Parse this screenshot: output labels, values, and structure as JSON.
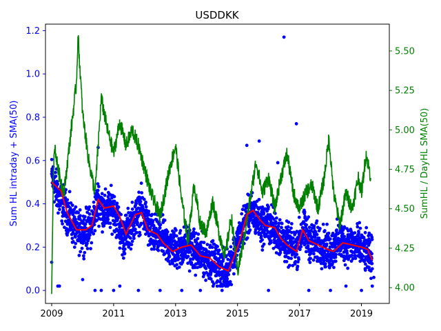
{
  "chart_data": {
    "type": "scatter",
    "title": "USDDKK",
    "xlabel": "",
    "ylabel_left": "Sum HL intraday + SMA(50)",
    "ylabel_right": "SumHL / DayHL SMA(50)",
    "xlim": [
      2008.8,
      2019.9
    ],
    "ylim_left": [
      -0.06,
      1.23
    ],
    "ylim_right": [
      3.9,
      5.67
    ],
    "x_ticks": [
      {
        "value": 2009,
        "label": "2009"
      },
      {
        "value": 2011,
        "label": "2011"
      },
      {
        "value": 2013,
        "label": "2013"
      },
      {
        "value": 2015,
        "label": "2015"
      },
      {
        "value": 2017,
        "label": "2017"
      },
      {
        "value": 2019,
        "label": "2019"
      }
    ],
    "y_ticks_left": [
      {
        "value": 0.0,
        "label": "0.0"
      },
      {
        "value": 0.2,
        "label": "0.2"
      },
      {
        "value": 0.4,
        "label": "0.4"
      },
      {
        "value": 0.6,
        "label": "0.6"
      },
      {
        "value": 0.8,
        "label": "0.8"
      },
      {
        "value": 1.0,
        "label": "1.0"
      },
      {
        "value": 1.2,
        "label": "1.2"
      }
    ],
    "y_ticks_right": [
      {
        "value": 4.0,
        "label": "4.00"
      },
      {
        "value": 4.25,
        "label": "4.25"
      },
      {
        "value": 4.5,
        "label": "4.50"
      },
      {
        "value": 4.75,
        "label": "4.75"
      },
      {
        "value": 5.0,
        "label": "5.00"
      },
      {
        "value": 5.25,
        "label": "5.25"
      },
      {
        "value": 5.5,
        "label": "5.50"
      }
    ],
    "grid": false,
    "legend": "none",
    "colors": {
      "scatter": "#0000ff",
      "sma": "#ff0000",
      "ratio": "#008000",
      "left_axis": "#0000ff",
      "right_axis": "#008000"
    },
    "series": [
      {
        "type": "scatter",
        "axis": "left",
        "color": "#0000ff",
        "trend": [
          [
            2009.0,
            0.53
          ],
          [
            2009.2,
            0.44
          ],
          [
            2009.5,
            0.36
          ],
          [
            2009.8,
            0.27
          ],
          [
            2010.0,
            0.27
          ],
          [
            2010.3,
            0.3
          ],
          [
            2010.5,
            0.42
          ],
          [
            2010.7,
            0.36
          ],
          [
            2011.0,
            0.38
          ],
          [
            2011.3,
            0.24
          ],
          [
            2011.6,
            0.31
          ],
          [
            2011.9,
            0.38
          ],
          [
            2012.2,
            0.26
          ],
          [
            2012.5,
            0.25
          ],
          [
            2012.8,
            0.2
          ],
          [
            2013.1,
            0.19
          ],
          [
            2013.4,
            0.21
          ],
          [
            2013.7,
            0.17
          ],
          [
            2014.0,
            0.15
          ],
          [
            2014.3,
            0.12
          ],
          [
            2014.6,
            0.08
          ],
          [
            2014.9,
            0.17
          ],
          [
            2015.2,
            0.31
          ],
          [
            2015.5,
            0.36
          ],
          [
            2015.8,
            0.3
          ],
          [
            2016.0,
            0.31
          ],
          [
            2016.3,
            0.26
          ],
          [
            2016.6,
            0.21
          ],
          [
            2016.9,
            0.19
          ],
          [
            2017.1,
            0.28
          ],
          [
            2017.4,
            0.22
          ],
          [
            2017.7,
            0.21
          ],
          [
            2018.0,
            0.18
          ],
          [
            2018.3,
            0.23
          ],
          [
            2018.6,
            0.21
          ],
          [
            2018.9,
            0.21
          ],
          [
            2019.1,
            0.18
          ],
          [
            2019.35,
            0.15
          ]
        ],
        "outliers": [
          [
            2009.0,
            0.13
          ],
          [
            2009.2,
            0.02
          ],
          [
            2009.25,
            0.02
          ],
          [
            2010.0,
            0.05
          ],
          [
            2010.4,
            0.0
          ],
          [
            2010.6,
            0.0
          ],
          [
            2010.5,
            0.66
          ],
          [
            2011.0,
            0.0
          ],
          [
            2011.2,
            0.02
          ],
          [
            2011.8,
            0.0
          ],
          [
            2012.5,
            0.0
          ],
          [
            2013.2,
            0.0
          ],
          [
            2013.8,
            0.0
          ],
          [
            2014.5,
            0.0
          ],
          [
            2015.3,
            0.67
          ],
          [
            2015.7,
            0.69
          ],
          [
            2016.0,
            0.0
          ],
          [
            2016.5,
            1.17
          ],
          [
            2016.9,
            0.77
          ],
          [
            2016.3,
            0.59
          ],
          [
            2017.3,
            0.0
          ],
          [
            2018.0,
            0.0
          ],
          [
            2018.5,
            0.02
          ],
          [
            2019.0,
            0.0
          ],
          [
            2019.35,
            0.02
          ],
          [
            2019.4,
            0.06
          ]
        ]
      },
      {
        "type": "line",
        "axis": "left",
        "color": "#ff0000",
        "points": [
          [
            2009.0,
            0.5
          ],
          [
            2009.3,
            0.46
          ],
          [
            2009.5,
            0.36
          ],
          [
            2009.8,
            0.28
          ],
          [
            2010.1,
            0.28
          ],
          [
            2010.3,
            0.3
          ],
          [
            2010.5,
            0.42
          ],
          [
            2010.7,
            0.38
          ],
          [
            2011.0,
            0.39
          ],
          [
            2011.2,
            0.34
          ],
          [
            2011.4,
            0.26
          ],
          [
            2011.7,
            0.35
          ],
          [
            2011.9,
            0.36
          ],
          [
            2012.1,
            0.28
          ],
          [
            2012.4,
            0.26
          ],
          [
            2012.6,
            0.22
          ],
          [
            2012.9,
            0.18
          ],
          [
            2013.2,
            0.2
          ],
          [
            2013.5,
            0.21
          ],
          [
            2013.8,
            0.16
          ],
          [
            2014.1,
            0.15
          ],
          [
            2014.4,
            0.11
          ],
          [
            2014.7,
            0.09
          ],
          [
            2014.9,
            0.16
          ],
          [
            2015.1,
            0.24
          ],
          [
            2015.3,
            0.35
          ],
          [
            2015.5,
            0.37
          ],
          [
            2015.7,
            0.33
          ],
          [
            2015.9,
            0.3
          ],
          [
            2016.2,
            0.29
          ],
          [
            2016.4,
            0.24
          ],
          [
            2016.6,
            0.21
          ],
          [
            2016.9,
            0.18
          ],
          [
            2017.1,
            0.28
          ],
          [
            2017.3,
            0.23
          ],
          [
            2017.6,
            0.21
          ],
          [
            2017.9,
            0.19
          ],
          [
            2018.1,
            0.18
          ],
          [
            2018.4,
            0.22
          ],
          [
            2018.7,
            0.21
          ],
          [
            2019.0,
            0.2
          ],
          [
            2019.2,
            0.19
          ],
          [
            2019.35,
            0.14
          ]
        ]
      },
      {
        "type": "line",
        "axis": "right",
        "color": "#008000",
        "points": [
          [
            2009.0,
            3.96
          ],
          [
            2009.05,
            4.7
          ],
          [
            2009.1,
            4.9
          ],
          [
            2009.2,
            4.75
          ],
          [
            2009.4,
            4.6
          ],
          [
            2009.6,
            4.95
          ],
          [
            2009.8,
            5.3
          ],
          [
            2009.85,
            5.6
          ],
          [
            2010.0,
            5.1
          ],
          [
            2010.2,
            4.8
          ],
          [
            2010.4,
            4.6
          ],
          [
            2010.6,
            5.2
          ],
          [
            2010.8,
            5.0
          ],
          [
            2011.0,
            4.85
          ],
          [
            2011.2,
            5.05
          ],
          [
            2011.4,
            4.9
          ],
          [
            2011.6,
            5.0
          ],
          [
            2011.8,
            4.9
          ],
          [
            2012.0,
            4.75
          ],
          [
            2012.2,
            4.6
          ],
          [
            2012.5,
            4.45
          ],
          [
            2012.8,
            4.75
          ],
          [
            2013.0,
            4.9
          ],
          [
            2013.2,
            4.55
          ],
          [
            2013.4,
            4.3
          ],
          [
            2013.6,
            4.65
          ],
          [
            2013.8,
            4.4
          ],
          [
            2014.0,
            4.35
          ],
          [
            2014.2,
            4.55
          ],
          [
            2014.4,
            4.35
          ],
          [
            2014.6,
            4.2
          ],
          [
            2014.8,
            4.45
          ],
          [
            2015.0,
            4.1
          ],
          [
            2015.2,
            4.3
          ],
          [
            2015.4,
            4.55
          ],
          [
            2015.6,
            4.8
          ],
          [
            2015.8,
            4.6
          ],
          [
            2016.0,
            4.7
          ],
          [
            2016.2,
            4.5
          ],
          [
            2016.4,
            4.7
          ],
          [
            2016.6,
            4.85
          ],
          [
            2016.8,
            4.6
          ],
          [
            2017.0,
            4.5
          ],
          [
            2017.2,
            4.6
          ],
          [
            2017.4,
            4.65
          ],
          [
            2017.6,
            4.5
          ],
          [
            2017.8,
            4.7
          ],
          [
            2017.95,
            4.95
          ],
          [
            2018.1,
            4.6
          ],
          [
            2018.3,
            4.4
          ],
          [
            2018.5,
            4.6
          ],
          [
            2018.7,
            4.5
          ],
          [
            2018.9,
            4.7
          ],
          [
            2019.0,
            4.6
          ],
          [
            2019.15,
            4.85
          ],
          [
            2019.3,
            4.7
          ]
        ]
      }
    ]
  }
}
